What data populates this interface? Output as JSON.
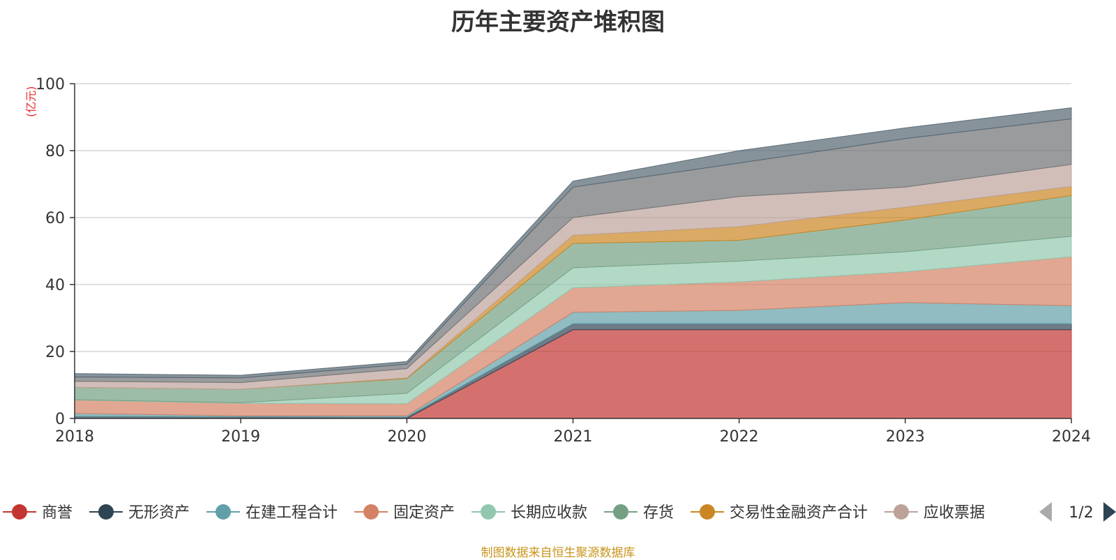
{
  "chart_data": {
    "type": "area",
    "stacked": true,
    "title": "历年主要资产堆积图",
    "ylabel": "(亿元)",
    "xlabel": "",
    "x": [
      "2018",
      "2019",
      "2020",
      "2021",
      "2022",
      "2023",
      "2024"
    ],
    "ylim": [
      0,
      100
    ],
    "yticks": [
      0,
      20,
      40,
      60,
      80,
      100
    ],
    "grid": true,
    "legend_position": "bottom",
    "legend_page": "1/2",
    "series": [
      {
        "name": "商誉",
        "color": "#c23531",
        "values": [
          0,
          0,
          0,
          26.5,
          26.5,
          26.5,
          26.5
        ]
      },
      {
        "name": "无形资产",
        "color": "#2f4554",
        "values": [
          0.6,
          0.5,
          0.4,
          1.8,
          1.8,
          1.8,
          1.8
        ]
      },
      {
        "name": "在建工程合计",
        "color": "#61a0a8",
        "values": [
          0.9,
          0.3,
          0.4,
          3.4,
          4.0,
          6.3,
          5.4
        ]
      },
      {
        "name": "固定资产",
        "color": "#d48265",
        "values": [
          4.0,
          3.7,
          3.6,
          7.3,
          8.5,
          9.2,
          14.6
        ]
      },
      {
        "name": "长期应收款",
        "color": "#91c7ae",
        "values": [
          0.1,
          0.2,
          3.1,
          6.0,
          6.2,
          6.0,
          6.1
        ]
      },
      {
        "name": "存货",
        "color": "#749f83",
        "values": [
          3.7,
          4.0,
          4.4,
          7.3,
          6.2,
          9.5,
          12.2
        ]
      },
      {
        "name": "交易性金融资产合计",
        "color": "#ca8622",
        "values": [
          0,
          0,
          0.2,
          2.4,
          4.1,
          3.8,
          2.7
        ]
      },
      {
        "name": "应收票据",
        "color": "#bda29a",
        "values": [
          1.8,
          2.0,
          2.8,
          5.3,
          9.0,
          6.0,
          6.6
        ]
      },
      {
        "name": "",
        "color": "#6e7074",
        "values": [
          1.3,
          1.4,
          1.3,
          9.1,
          10.0,
          14.5,
          13.6
        ]
      },
      {
        "name": "",
        "color": "#546570",
        "values": [
          1.0,
          0.8,
          0.8,
          1.8,
          3.7,
          3.2,
          3.3
        ]
      }
    ]
  },
  "source_note": "制图数据来自恒生聚源数据库",
  "legend_nav": {
    "prev_icon": "triangle-left-icon",
    "next_icon": "triangle-right-icon",
    "page": "1/2"
  },
  "colors": {
    "grid": "#c0c0c0",
    "axis": "#333333",
    "page_active": "#2f4554",
    "page_inactive": "#aaaaaa"
  }
}
